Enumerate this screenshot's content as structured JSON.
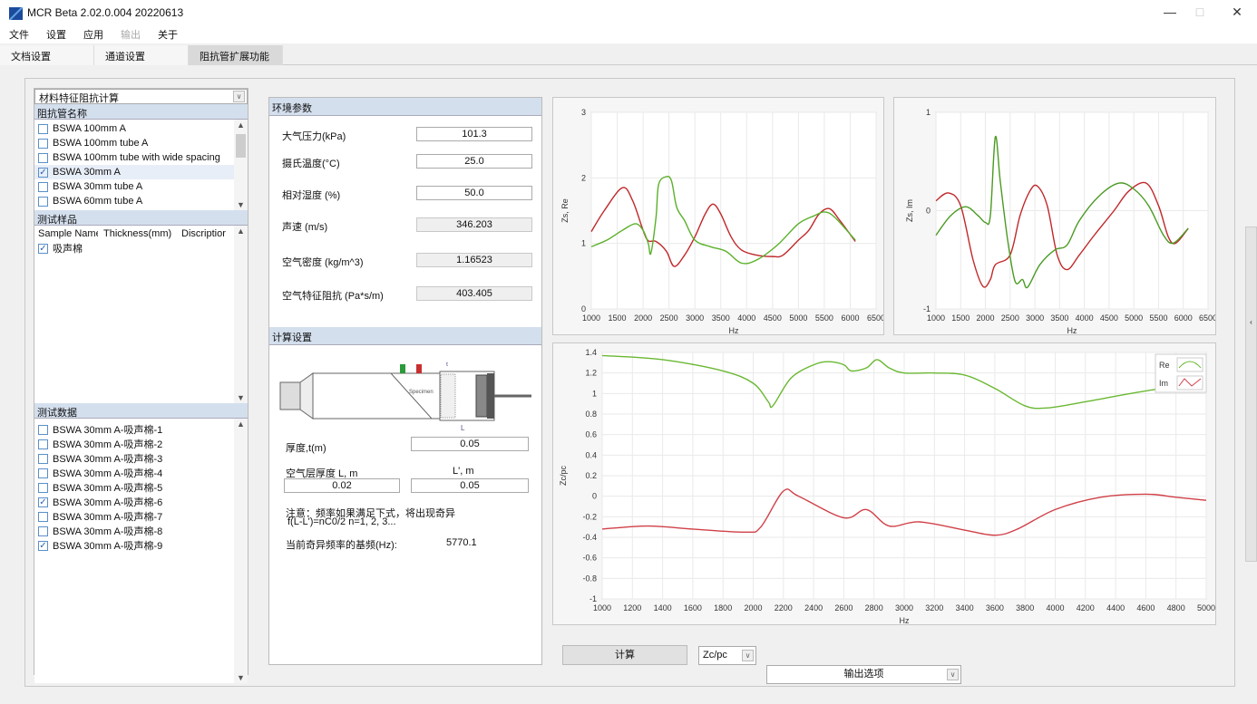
{
  "window": {
    "title": "MCR Beta 2.02.0.004 20220613",
    "minimize": "—",
    "maximize": "□",
    "close": "✕"
  },
  "menu": [
    {
      "label": "文件",
      "enabled": true
    },
    {
      "label": "设置",
      "enabled": true
    },
    {
      "label": "应用",
      "enabled": true
    },
    {
      "label": "输出",
      "enabled": false
    },
    {
      "label": "关于",
      "enabled": true
    }
  ],
  "tabs": [
    {
      "label": "文档设置"
    },
    {
      "label": "通道设置"
    },
    {
      "label": "阻抗管扩展功能",
      "active": true
    }
  ],
  "left": {
    "mode_select": "材料特征阻抗计算",
    "tube_header": "阻抗管名称",
    "tubes": [
      {
        "label": "BSWA 100mm A",
        "checked": false
      },
      {
        "label": "BSWA 100mm tube A",
        "checked": false
      },
      {
        "label": "BSWA 100mm tube with wide spacing",
        "checked": false
      },
      {
        "label": "BSWA 30mm A",
        "checked": true
      },
      {
        "label": "BSWA 30mm tube A",
        "checked": false
      },
      {
        "label": "BSWA 60mm tube A",
        "checked": false
      }
    ],
    "sample_header": "测试样品",
    "sample_columns": [
      "Sample Name",
      "Thickness(mm)",
      "Discriptior"
    ],
    "samples": [
      {
        "label": "吸声棉",
        "checked": true
      }
    ],
    "data_header": "测试数据",
    "data": [
      {
        "label": "BSWA 30mm A-吸声棉-1",
        "checked": false
      },
      {
        "label": "BSWA 30mm A-吸声棉-2",
        "checked": false
      },
      {
        "label": "BSWA 30mm A-吸声棉-3",
        "checked": false
      },
      {
        "label": "BSWA 30mm A-吸声棉-4",
        "checked": false
      },
      {
        "label": "BSWA 30mm A-吸声棉-5",
        "checked": false
      },
      {
        "label": "BSWA 30mm A-吸声棉-6",
        "checked": true
      },
      {
        "label": "BSWA 30mm A-吸声棉-7",
        "checked": false
      },
      {
        "label": "BSWA 30mm A-吸声棉-8",
        "checked": false
      },
      {
        "label": "BSWA 30mm A-吸声棉-9",
        "checked": true
      }
    ]
  },
  "env": {
    "header": "环境参数",
    "fields": [
      {
        "label": "大气压力(kPa)",
        "value": "101.3",
        "readonly": false
      },
      {
        "label": "摄氏温度(°C)",
        "value": "25.0",
        "readonly": false
      },
      {
        "label": "相对湿度 (%)",
        "value": "50.0",
        "readonly": false
      },
      {
        "label": "声速 (m/s)",
        "value": "346.203",
        "readonly": true
      },
      {
        "label": "空气密度 (kg/m^3)",
        "value": "1.16523",
        "readonly": true
      },
      {
        "label": "空气特征阻抗 (Pa*s/m)",
        "value": "403.405",
        "readonly": true
      }
    ]
  },
  "calc": {
    "header": "计算设置",
    "diagram": {
      "specimen_label": "Specimen",
      "t_label": "t",
      "l_label": "L",
      "mic1": "1",
      "mic2": "2"
    },
    "thickness_label": "厚度,t(m)",
    "thickness": "0.05",
    "air_label": "空气层厚度 L, m",
    "air": "0.02",
    "lprime_label": "L', m",
    "lprime": "0.05",
    "note1": "注意：频率如果满足下式，将出现奇异",
    "note2": "f(L-L')=nC0/2  n=1, 2, 3...",
    "singular_label": "当前奇异频率的基频(Hz):",
    "singular": "5770.1"
  },
  "bottom": {
    "compute": "计算",
    "type_select": "Zc/pc",
    "output_select": "输出选项"
  },
  "colors": {
    "red": "#c0282a",
    "green": "#5ab02a",
    "header": "#d4dfee"
  },
  "chart_data": [
    {
      "type": "line",
      "xlabel": "Hz",
      "ylabel": "Zs, Re",
      "xlim": [
        1000,
        6500
      ],
      "ylim": [
        0,
        3
      ],
      "xticks": [
        1000,
        1500,
        2000,
        2500,
        3000,
        3500,
        4000,
        4500,
        5000,
        5500,
        6000,
        6500
      ],
      "yticks": [
        0,
        1,
        2,
        3
      ],
      "grid": true,
      "series": [
        {
          "color": "#c0282a",
          "x": [
            1000,
            1250,
            1600,
            1800,
            2000,
            2100,
            2250,
            2450,
            2600,
            2800,
            3000,
            3200,
            3350,
            3500,
            3700,
            3900,
            4200,
            4500,
            4700,
            5000,
            5200,
            5400,
            5600,
            5800,
            6100
          ],
          "y": [
            1.18,
            1.5,
            1.85,
            1.65,
            1.2,
            1.04,
            1.03,
            0.88,
            0.65,
            0.82,
            1.1,
            1.45,
            1.6,
            1.45,
            1.1,
            0.9,
            0.82,
            0.8,
            0.82,
            1.05,
            1.2,
            1.45,
            1.53,
            1.35,
            1.03
          ]
        },
        {
          "color": "#5ab02a",
          "x": [
            1000,
            1300,
            1600,
            1850,
            2000,
            2100,
            2150,
            2250,
            2300,
            2450,
            2550,
            2650,
            2800,
            3000,
            3300,
            3600,
            3900,
            4200,
            4600,
            5000,
            5300,
            5500,
            5700,
            6100
          ],
          "y": [
            0.95,
            1.05,
            1.2,
            1.3,
            1.2,
            1.0,
            0.85,
            1.4,
            1.9,
            2.02,
            1.95,
            1.55,
            1.35,
            1.05,
            0.95,
            0.88,
            0.7,
            0.75,
            0.98,
            1.3,
            1.42,
            1.48,
            1.4,
            1.05
          ]
        }
      ]
    },
    {
      "type": "line",
      "xlabel": "Hz",
      "ylabel": "Zs, Im",
      "xlim": [
        1000,
        6500
      ],
      "ylim": [
        -1,
        1
      ],
      "xticks": [
        1000,
        1500,
        2000,
        2500,
        3000,
        3500,
        4000,
        4500,
        5000,
        5500,
        6000,
        6500
      ],
      "yticks": [
        -1,
        0,
        1
      ],
      "grid": true,
      "series": [
        {
          "color": "#c0282a",
          "x": [
            1000,
            1250,
            1500,
            1750,
            1950,
            2100,
            2200,
            2500,
            2700,
            2900,
            3050,
            3250,
            3450,
            3650,
            3900,
            4200,
            4600,
            4900,
            5250,
            5500,
            5700,
            5850,
            6100
          ],
          "y": [
            0.1,
            0.18,
            0.05,
            -0.5,
            -0.77,
            -0.7,
            -0.55,
            -0.45,
            -0.05,
            0.2,
            0.25,
            0.05,
            -0.45,
            -0.6,
            -0.45,
            -0.25,
            0.0,
            0.2,
            0.28,
            0.05,
            -0.27,
            -0.33,
            -0.18
          ]
        },
        {
          "color": "#4a9a22",
          "x": [
            1000,
            1300,
            1600,
            1850,
            2000,
            2100,
            2200,
            2300,
            2450,
            2600,
            2750,
            2850,
            3100,
            3400,
            3650,
            3900,
            4300,
            4700,
            5000,
            5300,
            5600,
            5800,
            6100
          ],
          "y": [
            -0.25,
            -0.05,
            0.04,
            -0.05,
            -0.12,
            -0.05,
            0.75,
            0.3,
            -0.3,
            -0.72,
            -0.7,
            -0.78,
            -0.55,
            -0.4,
            -0.35,
            -0.1,
            0.15,
            0.28,
            0.22,
            0.05,
            -0.25,
            -0.33,
            -0.18
          ]
        }
      ]
    },
    {
      "type": "line",
      "xlabel": "Hz",
      "ylabel": "Zc/pc",
      "xlim": [
        1000,
        5000
      ],
      "ylim": [
        -1,
        1.4
      ],
      "xticks": [
        1000,
        1200,
        1400,
        1600,
        1800,
        2000,
        2200,
        2400,
        2600,
        2800,
        3000,
        3200,
        3400,
        3600,
        3800,
        4000,
        4200,
        4400,
        4600,
        4800,
        5000
      ],
      "yticks": [
        -1,
        -0.8,
        -0.6,
        -0.4,
        -0.2,
        0,
        0.2,
        0.4,
        0.6,
        0.8,
        1,
        1.2,
        1.4
      ],
      "grid": true,
      "legend": "top-right",
      "series": [
        {
          "name": "Re",
          "color": "#6ab832",
          "x": [
            1000,
            1400,
            1800,
            2000,
            2100,
            2130,
            2250,
            2400,
            2500,
            2600,
            2650,
            2750,
            2820,
            2900,
            3000,
            3200,
            3400,
            3600,
            3800,
            3950,
            4200,
            4500,
            4800,
            5000
          ],
          "y": [
            1.37,
            1.33,
            1.22,
            1.1,
            0.92,
            0.88,
            1.15,
            1.28,
            1.31,
            1.28,
            1.22,
            1.25,
            1.33,
            1.25,
            1.2,
            1.2,
            1.18,
            1.05,
            0.88,
            0.86,
            0.92,
            1.0,
            1.07,
            1.08
          ]
        },
        {
          "name": "Im",
          "color": "#d04048",
          "x": [
            1000,
            1300,
            1600,
            1950,
            2050,
            2200,
            2300,
            2600,
            2750,
            2900,
            3100,
            3400,
            3600,
            3750,
            4000,
            4300,
            4600,
            4800,
            5000
          ],
          "y": [
            -0.32,
            -0.29,
            -0.32,
            -0.35,
            -0.3,
            0.05,
            0.0,
            -0.21,
            -0.13,
            -0.29,
            -0.25,
            -0.33,
            -0.38,
            -0.32,
            -0.13,
            -0.01,
            0.02,
            -0.01,
            -0.04
          ]
        }
      ]
    }
  ]
}
